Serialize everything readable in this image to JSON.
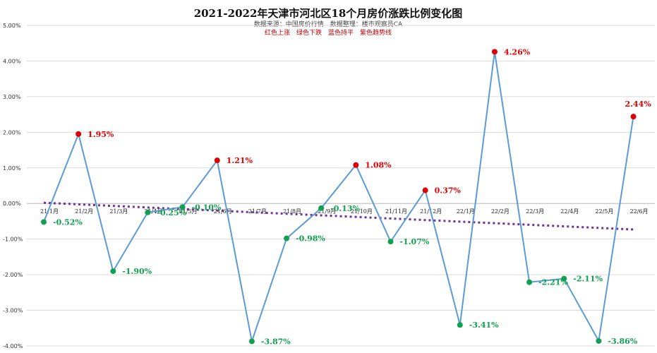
{
  "chart_data": {
    "type": "line",
    "title": "2021-2022年天津市河北区18个月房价涨跌比例变化图",
    "subtitle": "数据来源：中国房价行情　数据整理：楼市观察员CA",
    "legend_text": "红色上涨　绿色下跌　蓝色持平　紫色趋势线",
    "categories": [
      "21/1月",
      "21/2月",
      "21/3月",
      "21/4月",
      "21/5月",
      "21/6月",
      "21/7月",
      "21/8月",
      "21/9月",
      "21/10月",
      "21/11月",
      "21/12月",
      "22/1月",
      "22/2月",
      "22/3月",
      "22/4月",
      "22/5月",
      "22/6月"
    ],
    "values": [
      -0.52,
      1.95,
      -1.9,
      -0.25,
      -0.1,
      1.21,
      -3.87,
      -0.98,
      -0.13,
      1.08,
      -1.07,
      0.37,
      -3.41,
      4.26,
      -2.21,
      -2.11,
      -3.86,
      2.44
    ],
    "data_labels": [
      "-0.52%",
      "1.95%",
      "-1.90%",
      "-0.25%",
      "-0.10%",
      "1.21%",
      "-3.87%",
      "-0.98%",
      "-0.13%",
      "1.08%",
      "-1.07%",
      "0.37%",
      "-3.41%",
      "4.26%",
      "-2.21%",
      "-2.11%",
      "-3.86%",
      "2.44%"
    ],
    "y_ticks": [
      "5.00%",
      "4.00%",
      "3.00%",
      "2.00%",
      "1.00%",
      "0.00%",
      "-1.00%",
      "-2.00%",
      "-3.00%",
      "-4.00%"
    ],
    "ylim": [
      -4,
      5
    ],
    "trendline": {
      "start": 0.02,
      "end": -0.73
    },
    "grid": true,
    "colors": {
      "line": "#5b9bd5",
      "up": "#e00000",
      "down": "#10a050",
      "trend": "#7030a0",
      "grid": "#d9d9d9"
    }
  }
}
